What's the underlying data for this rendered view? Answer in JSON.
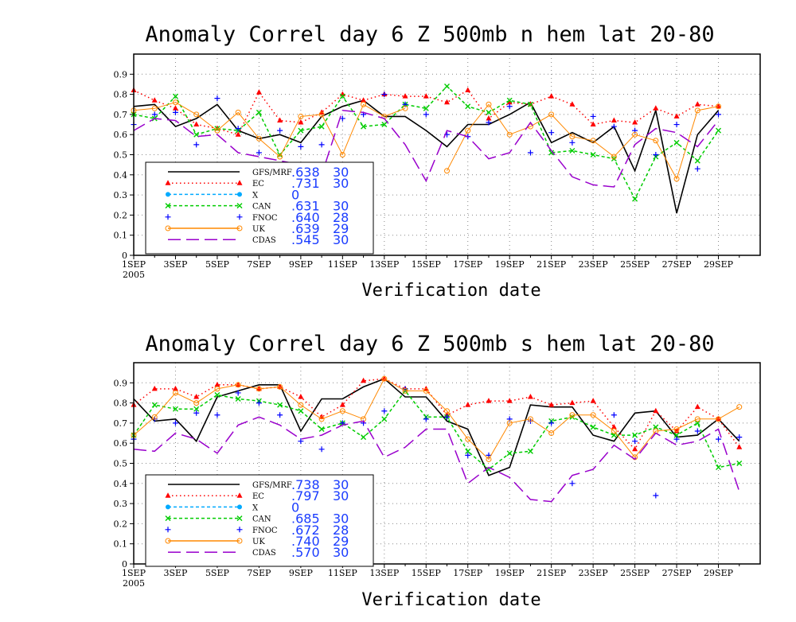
{
  "chart_data": [
    {
      "type": "line",
      "title": "Anomaly Correl  day 6  Z 500mb  n hem  lat 20-80",
      "xlabel": "Verification date",
      "ylabel": "",
      "ylim": [
        0,
        1.0
      ],
      "yticks": [
        "0",
        "0.1",
        "0.2",
        "0.3",
        "0.4",
        "0.5",
        "0.6",
        "0.7",
        "0.8",
        "0.9"
      ],
      "xlim": [
        1,
        31
      ],
      "x_tick_labels": [
        "1SEP",
        "3SEP",
        "5SEP",
        "7SEP",
        "9SEP",
        "11SEP",
        "13SEP",
        "15SEP",
        "17SEP",
        "19SEP",
        "21SEP",
        "23SEP",
        "25SEP",
        "27SEP",
        "29SEP"
      ],
      "x_sub_label": "2005",
      "grid": "dotted",
      "legend_position": "lower-left",
      "series": [
        {
          "name": "GFS/MRF",
          "score": ".638",
          "count": "30",
          "color": "#000000",
          "style": "solid",
          "marker": "none",
          "values": [
            0.74,
            0.75,
            0.64,
            0.68,
            0.75,
            0.62,
            0.58,
            0.6,
            0.56,
            0.69,
            0.74,
            0.77,
            0.69,
            0.69,
            0.62,
            0.54,
            0.65,
            0.65,
            0.7,
            0.76,
            0.56,
            0.61,
            0.56,
            0.64,
            0.42,
            0.72,
            0.21,
            0.6,
            0.72
          ]
        },
        {
          "name": "EC",
          "score": ".731",
          "count": "30",
          "color": "#ff0000",
          "style": "dotted",
          "marker": "triangle",
          "values": [
            0.82,
            0.77,
            0.73,
            0.65,
            0.63,
            0.6,
            0.81,
            0.67,
            0.66,
            0.71,
            0.8,
            0.77,
            0.8,
            0.79,
            0.79,
            0.76,
            0.82,
            0.68,
            0.76,
            0.75,
            0.79,
            0.75,
            0.65,
            0.67,
            0.66,
            0.73,
            0.69,
            0.75,
            0.74
          ]
        },
        {
          "name": "X",
          "score": "0",
          "count": "",
          "color": "#00aaff",
          "style": "dashed",
          "marker": "dot",
          "values": []
        },
        {
          "name": "CAN",
          "score": ".631",
          "count": "30",
          "color": "#00cc00",
          "style": "dashed",
          "marker": "x",
          "values": [
            0.7,
            0.68,
            0.79,
            0.6,
            0.63,
            0.62,
            0.71,
            0.5,
            0.62,
            0.64,
            0.79,
            0.64,
            0.65,
            0.75,
            0.73,
            0.84,
            0.74,
            0.71,
            0.77,
            0.75,
            0.51,
            0.52,
            0.5,
            0.48,
            0.28,
            0.49,
            0.56,
            0.47,
            0.62
          ]
        },
        {
          "name": "FNOC",
          "score": ".640",
          "count": "28",
          "color": "#0000ff",
          "style": "none",
          "marker": "plus",
          "values": [
            0.65,
            0.7,
            0.71,
            0.55,
            0.78,
            0.63,
            0.51,
            0.62,
            0.54,
            0.55,
            0.68,
            0.7,
            0.8,
            0.75,
            0.7,
            0.6,
            0.59,
            0.66,
            0.74,
            0.51,
            0.61,
            0.56,
            0.69,
            0.64,
            0.62,
            0.5,
            0.65,
            0.43,
            0.7
          ]
        },
        {
          "name": "UK",
          "score": ".639",
          "count": "29",
          "color": "#ff8800",
          "style": "solid",
          "marker": "circle",
          "values": [
            0.72,
            0.73,
            0.76,
            0.7,
            0.62,
            0.71,
            0.58,
            0.49,
            0.69,
            0.7,
            0.5,
            0.75,
            0.69,
            0.73,
            null,
            0.42,
            0.62,
            0.75,
            0.6,
            0.64,
            0.7,
            0.59,
            0.57,
            0.49,
            0.6,
            0.57,
            0.38,
            0.72,
            0.74
          ]
        },
        {
          "name": "CDAS",
          "score": ".545",
          "count": "30",
          "color": "#9900cc",
          "style": "longdash",
          "marker": "none",
          "values": [
            0.62,
            0.68,
            0.67,
            0.59,
            0.6,
            0.51,
            0.49,
            0.47,
            0.45,
            0.4,
            0.72,
            0.71,
            0.68,
            0.55,
            0.37,
            0.62,
            0.59,
            0.48,
            0.51,
            0.66,
            0.52,
            0.39,
            0.35,
            0.34,
            0.55,
            0.63,
            0.61,
            0.54,
            0.67
          ]
        }
      ]
    },
    {
      "type": "line",
      "title": "Anomaly Correl  day 6  Z 500mb  s hem  lat 20-80",
      "xlabel": "Verification date",
      "ylabel": "",
      "ylim": [
        0,
        1.0
      ],
      "yticks": [
        "0",
        "0.1",
        "0.2",
        "0.3",
        "0.4",
        "0.5",
        "0.6",
        "0.7",
        "0.8",
        "0.9"
      ],
      "xlim": [
        1,
        31
      ],
      "x_tick_labels": [
        "1SEP",
        "3SEP",
        "5SEP",
        "7SEP",
        "9SEP",
        "11SEP",
        "13SEP",
        "15SEP",
        "17SEP",
        "19SEP",
        "21SEP",
        "23SEP",
        "25SEP",
        "27SEP",
        "29SEP"
      ],
      "x_sub_label": "2005",
      "grid": "dotted",
      "legend_position": "lower-left",
      "series": [
        {
          "name": "GFS/MRF",
          "score": ".738",
          "count": "30",
          "color": "#000000",
          "style": "solid",
          "marker": "none",
          "values": [
            0.82,
            0.71,
            0.72,
            0.61,
            0.83,
            0.86,
            0.89,
            0.89,
            0.66,
            0.82,
            0.82,
            0.88,
            0.92,
            0.83,
            0.83,
            0.71,
            0.67,
            0.44,
            0.48,
            0.79,
            0.78,
            0.78,
            0.64,
            0.61,
            0.75,
            0.76,
            0.63,
            0.64,
            0.72,
            0.61
          ]
        },
        {
          "name": "EC",
          "score": ".797",
          "count": "30",
          "color": "#ff0000",
          "style": "dotted",
          "marker": "triangle",
          "values": [
            0.79,
            0.87,
            0.87,
            0.83,
            0.89,
            0.89,
            0.87,
            0.88,
            0.83,
            0.73,
            0.79,
            0.91,
            0.92,
            0.87,
            0.87,
            0.74,
            0.79,
            0.81,
            0.81,
            0.83,
            0.79,
            0.8,
            0.81,
            0.68,
            0.57,
            0.76,
            0.66,
            0.78,
            0.72,
            0.58
          ]
        },
        {
          "name": "X",
          "score": "0",
          "count": "",
          "color": "#00aaff",
          "style": "dashed",
          "marker": "dot",
          "values": []
        },
        {
          "name": "CAN",
          "score": ".685",
          "count": "30",
          "color": "#00cc00",
          "style": "dashed",
          "marker": "x",
          "values": [
            0.64,
            0.79,
            0.77,
            0.77,
            0.84,
            0.82,
            0.81,
            0.79,
            0.76,
            0.67,
            0.7,
            0.63,
            0.72,
            0.86,
            0.73,
            0.73,
            0.56,
            0.47,
            0.55,
            0.56,
            0.71,
            0.73,
            0.68,
            0.64,
            0.64,
            0.68,
            0.64,
            0.7,
            0.48,
            0.5
          ]
        },
        {
          "name": "FNOC",
          "score": ".672",
          "count": "28",
          "color": "#0000ff",
          "style": "none",
          "marker": "plus",
          "values": [
            0.62,
            0.72,
            0.7,
            0.75,
            0.74,
            0.85,
            0.8,
            0.74,
            0.61,
            0.57,
            0.7,
            0.7,
            0.76,
            0.87,
            0.72,
            0.73,
            0.54,
            0.54,
            0.72,
            0.71,
            0.7,
            0.4,
            null,
            0.74,
            0.61,
            0.34,
            0.62,
            0.66,
            0.62,
            0.63
          ]
        },
        {
          "name": "UK",
          "score": ".740",
          "count": "29",
          "color": "#ff8800",
          "style": "solid",
          "marker": "circle",
          "values": [
            0.64,
            0.73,
            0.85,
            0.8,
            0.87,
            0.89,
            0.87,
            0.88,
            0.79,
            0.72,
            0.76,
            0.72,
            0.92,
            0.86,
            0.86,
            0.76,
            0.62,
            0.52,
            0.7,
            0.72,
            0.65,
            0.74,
            0.74,
            0.66,
            0.53,
            0.66,
            0.67,
            0.72,
            0.72,
            0.78
          ]
        },
        {
          "name": "CDAS",
          "score": ".570",
          "count": "30",
          "color": "#9900cc",
          "style": "longdash",
          "marker": "none",
          "values": [
            0.57,
            0.56,
            0.65,
            0.62,
            0.55,
            0.69,
            0.73,
            0.69,
            0.62,
            0.64,
            0.69,
            0.71,
            0.53,
            0.58,
            0.67,
            0.67,
            0.4,
            0.48,
            0.43,
            0.32,
            0.31,
            0.44,
            0.47,
            0.59,
            0.52,
            0.65,
            0.59,
            0.61,
            0.67,
            0.36
          ]
        }
      ]
    }
  ]
}
